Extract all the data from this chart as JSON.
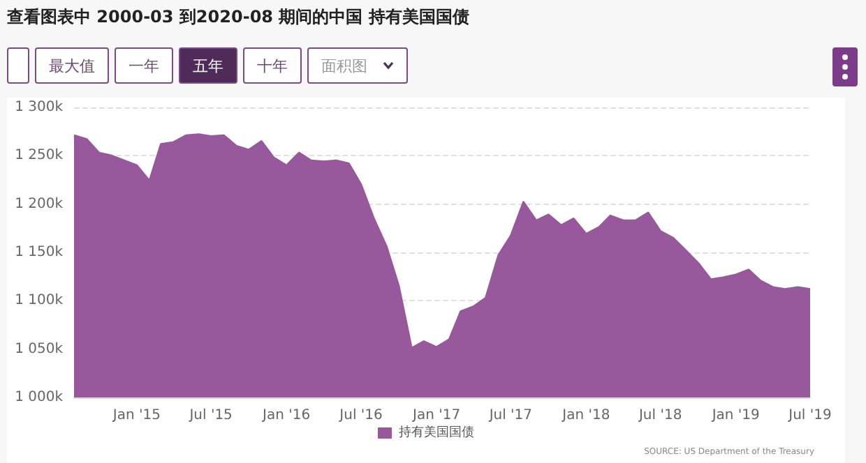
{
  "chart_data": {
    "type": "area",
    "title": "查看图表中 2000-03 到2020-08 期间的中国 持有美国国债",
    "annotations": [
      "最大值",
      "一年",
      "五年",
      "十年",
      "面积图",
      "SOURCE: US Department of the Treasury"
    ],
    "x": [
      "2014-08",
      "2014-09",
      "2014-10",
      "2014-11",
      "2014-12",
      "2015-01",
      "2015-02",
      "2015-03",
      "2015-04",
      "2015-05",
      "2015-06",
      "2015-07",
      "2015-08",
      "2015-09",
      "2015-10",
      "2015-11",
      "2015-12",
      "2016-01",
      "2016-02",
      "2016-03",
      "2016-04",
      "2016-05",
      "2016-06",
      "2016-07",
      "2016-08",
      "2016-09",
      "2016-10",
      "2016-11",
      "2016-12",
      "2017-01",
      "2017-02",
      "2017-03",
      "2017-04",
      "2017-05",
      "2017-06",
      "2017-07",
      "2017-08",
      "2017-09",
      "2017-10",
      "2017-11",
      "2017-12",
      "2018-01",
      "2018-02",
      "2018-03",
      "2018-04",
      "2018-05",
      "2018-06",
      "2018-07",
      "2018-08",
      "2018-09",
      "2018-10",
      "2018-11",
      "2018-12",
      "2019-01",
      "2019-02",
      "2019-03",
      "2019-04",
      "2019-05",
      "2019-06",
      "2019-07"
    ],
    "series": [
      {
        "name": "持有美国国债",
        "color": "#97599b",
        "values": [
          1271000,
          1267000,
          1253000,
          1250000,
          1245000,
          1240000,
          1224000,
          1262000,
          1264000,
          1271000,
          1272000,
          1270000,
          1271000,
          1260000,
          1256000,
          1265000,
          1248000,
          1240000,
          1253000,
          1245000,
          1244000,
          1245000,
          1242000,
          1220000,
          1185000,
          1156000,
          1115000,
          1051000,
          1058000,
          1052000,
          1060000,
          1089000,
          1094000,
          1103000,
          1147000,
          1167000,
          1202000,
          1183000,
          1189000,
          1178000,
          1185000,
          1169000,
          1176000,
          1188000,
          1183000,
          1183000,
          1191000,
          1172000,
          1165000,
          1152000,
          1139000,
          1122000,
          1124000,
          1127000,
          1132000,
          1121000,
          1114000,
          1112000,
          1114000,
          1112000
        ]
      }
    ],
    "xlim": [
      "2014-08",
      "2019-07"
    ],
    "xticks": [
      {
        "value": "2015-01",
        "label": "Jan '15"
      },
      {
        "value": "2015-07",
        "label": "Jul '15"
      },
      {
        "value": "2016-01",
        "label": "Jan '16"
      },
      {
        "value": "2016-07",
        "label": "Jul '16"
      },
      {
        "value": "2017-01",
        "label": "Jan '17"
      },
      {
        "value": "2017-07",
        "label": "Jul '17"
      },
      {
        "value": "2018-01",
        "label": "Jan '18"
      },
      {
        "value": "2018-07",
        "label": "Jul '18"
      },
      {
        "value": "2019-01",
        "label": "Jan '19"
      },
      {
        "value": "2019-07",
        "label": "Jul '19"
      }
    ],
    "ylim": [
      1000000,
      1300000
    ],
    "yticks": [
      {
        "value": 1000000,
        "label": "1 000k"
      },
      {
        "value": 1050000,
        "label": "1 050k"
      },
      {
        "value": 1100000,
        "label": "1 100k"
      },
      {
        "value": 1150000,
        "label": "1 150k"
      },
      {
        "value": 1200000,
        "label": "1 200k"
      },
      {
        "value": 1250000,
        "label": "1 250k"
      },
      {
        "value": 1300000,
        "label": "1 300k"
      }
    ],
    "grid": "y",
    "legend": "bottom",
    "marker": "none"
  }
}
